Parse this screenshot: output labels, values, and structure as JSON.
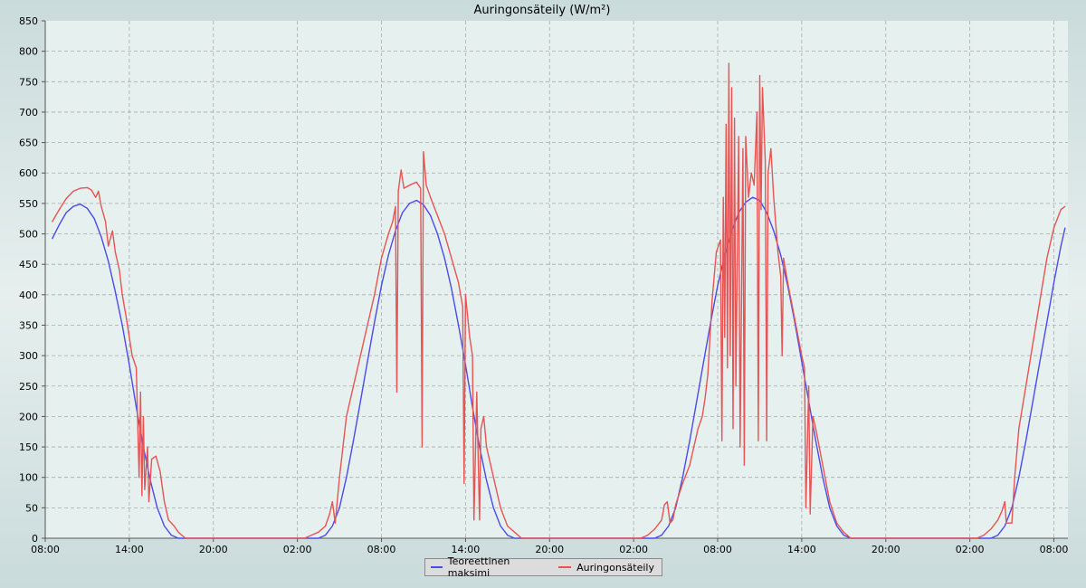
{
  "chart_data": {
    "type": "line",
    "title": "Auringonsäteily (W/m²)",
    "xlabel": "",
    "ylabel": "",
    "ylim": [
      0,
      850
    ],
    "xlim_hours": [
      0,
      73
    ],
    "y_ticks": [
      0,
      50,
      100,
      150,
      200,
      250,
      300,
      350,
      400,
      450,
      500,
      550,
      600,
      650,
      700,
      750,
      800,
      850
    ],
    "x_ticks": [
      {
        "h": 0,
        "label": "08:00"
      },
      {
        "h": 6,
        "label": "14:00"
      },
      {
        "h": 12,
        "label": "20:00"
      },
      {
        "h": 18,
        "label": "02:00"
      },
      {
        "h": 24,
        "label": "08:00"
      },
      {
        "h": 30,
        "label": "14:00"
      },
      {
        "h": 36,
        "label": "20:00"
      },
      {
        "h": 42,
        "label": "02:00"
      },
      {
        "h": 48,
        "label": "08:00"
      },
      {
        "h": 54,
        "label": "14:00"
      },
      {
        "h": 60,
        "label": "20:00"
      },
      {
        "h": 66,
        "label": "02:00"
      },
      {
        "h": 72,
        "label": "08:00"
      }
    ],
    "grid": true,
    "legend_position": "bottom",
    "colors": {
      "series1": "#4b4be6",
      "series2": "#e65454",
      "plot_bg": "#e6f0ef",
      "grid": "#aaaaaa"
    },
    "series": [
      {
        "name": "Teoreettinen maksimi",
        "color": "#4b4be6",
        "points": [
          [
            0.5,
            492
          ],
          [
            1,
            515
          ],
          [
            1.5,
            535
          ],
          [
            2,
            545
          ],
          [
            2.5,
            549
          ],
          [
            3,
            542
          ],
          [
            3.5,
            525
          ],
          [
            4,
            495
          ],
          [
            4.5,
            455
          ],
          [
            5,
            405
          ],
          [
            5.5,
            350
          ],
          [
            6,
            285
          ],
          [
            6.5,
            215
          ],
          [
            7,
            150
          ],
          [
            7.5,
            95
          ],
          [
            8,
            50
          ],
          [
            8.5,
            20
          ],
          [
            9,
            5
          ],
          [
            9.5,
            0
          ],
          [
            19.5,
            0
          ],
          [
            20,
            5
          ],
          [
            20.5,
            20
          ],
          [
            21,
            50
          ],
          [
            21.5,
            100
          ],
          [
            22,
            160
          ],
          [
            22.5,
            225
          ],
          [
            23,
            290
          ],
          [
            23.5,
            355
          ],
          [
            24,
            415
          ],
          [
            24.5,
            465
          ],
          [
            25,
            505
          ],
          [
            25.5,
            535
          ],
          [
            26,
            550
          ],
          [
            26.5,
            555
          ],
          [
            27,
            548
          ],
          [
            27.5,
            530
          ],
          [
            28,
            500
          ],
          [
            28.5,
            460
          ],
          [
            29,
            410
          ],
          [
            29.5,
            350
          ],
          [
            30,
            285
          ],
          [
            30.5,
            215
          ],
          [
            31,
            150
          ],
          [
            31.5,
            95
          ],
          [
            32,
            50
          ],
          [
            32.5,
            20
          ],
          [
            33,
            5
          ],
          [
            33.5,
            0
          ],
          [
            43.5,
            0
          ],
          [
            44,
            5
          ],
          [
            44.5,
            20
          ],
          [
            45,
            50
          ],
          [
            45.5,
            100
          ],
          [
            46,
            160
          ],
          [
            46.5,
            225
          ],
          [
            47,
            290
          ],
          [
            47.5,
            355
          ],
          [
            48,
            415
          ],
          [
            48.5,
            465
          ],
          [
            49,
            505
          ],
          [
            49.5,
            535
          ],
          [
            50,
            552
          ],
          [
            50.5,
            560
          ],
          [
            51,
            555
          ],
          [
            51.5,
            535
          ],
          [
            52,
            505
          ],
          [
            52.5,
            465
          ],
          [
            53,
            415
          ],
          [
            53.5,
            355
          ],
          [
            54,
            290
          ],
          [
            54.5,
            225
          ],
          [
            55,
            160
          ],
          [
            55.5,
            100
          ],
          [
            56,
            50
          ],
          [
            56.5,
            20
          ],
          [
            57,
            5
          ],
          [
            57.5,
            0
          ],
          [
            67.5,
            0
          ],
          [
            68,
            5
          ],
          [
            68.5,
            20
          ],
          [
            69,
            50
          ],
          [
            69.5,
            100
          ],
          [
            70,
            160
          ],
          [
            70.5,
            225
          ],
          [
            71,
            290
          ],
          [
            71.5,
            355
          ],
          [
            72,
            420
          ],
          [
            72.5,
            480
          ],
          [
            72.8,
            510
          ]
        ]
      },
      {
        "name": "Auringonsäteily",
        "color": "#e65454",
        "points": [
          [
            0.5,
            520
          ],
          [
            1,
            540
          ],
          [
            1.5,
            558
          ],
          [
            2,
            570
          ],
          [
            2.5,
            575
          ],
          [
            3,
            576
          ],
          [
            3.3,
            572
          ],
          [
            3.6,
            560
          ],
          [
            3.8,
            570
          ],
          [
            4,
            545
          ],
          [
            4.3,
            520
          ],
          [
            4.5,
            480
          ],
          [
            4.8,
            505
          ],
          [
            5,
            470
          ],
          [
            5.3,
            440
          ],
          [
            5.5,
            400
          ],
          [
            5.8,
            360
          ],
          [
            6,
            330
          ],
          [
            6.2,
            300
          ],
          [
            6.5,
            280
          ],
          [
            6.7,
            100
          ],
          [
            6.8,
            240
          ],
          [
            6.9,
            70
          ],
          [
            7,
            200
          ],
          [
            7.1,
            80
          ],
          [
            7.3,
            150
          ],
          [
            7.4,
            60
          ],
          [
            7.6,
            130
          ],
          [
            7.9,
            135
          ],
          [
            8.2,
            110
          ],
          [
            8.5,
            60
          ],
          [
            8.8,
            30
          ],
          [
            9.2,
            20
          ],
          [
            9.5,
            10
          ],
          [
            10,
            0
          ],
          [
            18.5,
            0
          ],
          [
            19,
            5
          ],
          [
            19.5,
            10
          ],
          [
            20,
            20
          ],
          [
            20.3,
            40
          ],
          [
            20.5,
            60
          ],
          [
            20.7,
            25
          ],
          [
            21,
            100
          ],
          [
            21.5,
            200
          ],
          [
            22,
            250
          ],
          [
            22.5,
            300
          ],
          [
            23,
            350
          ],
          [
            23.5,
            400
          ],
          [
            24,
            460
          ],
          [
            24.5,
            500
          ],
          [
            24.8,
            520
          ],
          [
            25,
            545
          ],
          [
            25.1,
            240
          ],
          [
            25.2,
            570
          ],
          [
            25.4,
            605
          ],
          [
            25.6,
            575
          ],
          [
            26,
            580
          ],
          [
            26.5,
            585
          ],
          [
            26.8,
            575
          ],
          [
            26.9,
            150
          ],
          [
            27,
            635
          ],
          [
            27.2,
            580
          ],
          [
            27.5,
            560
          ],
          [
            28,
            530
          ],
          [
            28.5,
            500
          ],
          [
            29,
            460
          ],
          [
            29.5,
            420
          ],
          [
            29.8,
            380
          ],
          [
            29.9,
            90
          ],
          [
            30,
            400
          ],
          [
            30.3,
            330
          ],
          [
            30.5,
            300
          ],
          [
            30.6,
            30
          ],
          [
            30.8,
            240
          ],
          [
            31,
            30
          ],
          [
            31.1,
            180
          ],
          [
            31.3,
            200
          ],
          [
            31.5,
            150
          ],
          [
            32,
            100
          ],
          [
            32.5,
            50
          ],
          [
            33,
            20
          ],
          [
            33.5,
            10
          ],
          [
            34,
            0
          ],
          [
            42.5,
            0
          ],
          [
            43,
            5
          ],
          [
            43.5,
            15
          ],
          [
            44,
            30
          ],
          [
            44.2,
            55
          ],
          [
            44.4,
            60
          ],
          [
            44.6,
            25
          ],
          [
            44.8,
            30
          ],
          [
            45,
            55
          ],
          [
            45.5,
            90
          ],
          [
            46,
            120
          ],
          [
            46.3,
            150
          ],
          [
            46.6,
            180
          ],
          [
            46.9,
            200
          ],
          [
            47.1,
            230
          ],
          [
            47.3,
            270
          ],
          [
            47.6,
            390
          ],
          [
            47.9,
            470
          ],
          [
            48.2,
            490
          ],
          [
            48.3,
            160
          ],
          [
            48.4,
            560
          ],
          [
            48.5,
            330
          ],
          [
            48.6,
            680
          ],
          [
            48.7,
            280
          ],
          [
            48.8,
            780
          ],
          [
            48.9,
            300
          ],
          [
            49,
            740
          ],
          [
            49.1,
            180
          ],
          [
            49.2,
            690
          ],
          [
            49.3,
            250
          ],
          [
            49.5,
            660
          ],
          [
            49.6,
            150
          ],
          [
            49.8,
            640
          ],
          [
            49.9,
            120
          ],
          [
            50,
            660
          ],
          [
            50.2,
            560
          ],
          [
            50.4,
            600
          ],
          [
            50.6,
            580
          ],
          [
            50.8,
            700
          ],
          [
            50.9,
            160
          ],
          [
            51,
            760
          ],
          [
            51.1,
            540
          ],
          [
            51.2,
            740
          ],
          [
            51.4,
            620
          ],
          [
            51.5,
            160
          ],
          [
            51.6,
            600
          ],
          [
            51.8,
            640
          ],
          [
            52,
            560
          ],
          [
            52.3,
            470
          ],
          [
            52.5,
            430
          ],
          [
            52.6,
            300
          ],
          [
            52.7,
            460
          ],
          [
            53,
            420
          ],
          [
            53.5,
            360
          ],
          [
            54,
            300
          ],
          [
            54.2,
            280
          ],
          [
            54.3,
            50
          ],
          [
            54.5,
            250
          ],
          [
            54.6,
            40
          ],
          [
            54.8,
            200
          ],
          [
            55,
            180
          ],
          [
            55.5,
            120
          ],
          [
            56,
            60
          ],
          [
            56.5,
            25
          ],
          [
            57,
            10
          ],
          [
            57.5,
            0
          ],
          [
            66.5,
            0
          ],
          [
            67,
            5
          ],
          [
            67.5,
            15
          ],
          [
            68,
            30
          ],
          [
            68.3,
            45
          ],
          [
            68.5,
            60
          ],
          [
            68.6,
            25
          ],
          [
            69,
            25
          ],
          [
            69.2,
            100
          ],
          [
            69.5,
            180
          ],
          [
            70,
            250
          ],
          [
            70.5,
            320
          ],
          [
            71,
            390
          ],
          [
            71.5,
            460
          ],
          [
            72,
            510
          ],
          [
            72.5,
            540
          ],
          [
            72.8,
            545
          ]
        ]
      }
    ]
  }
}
